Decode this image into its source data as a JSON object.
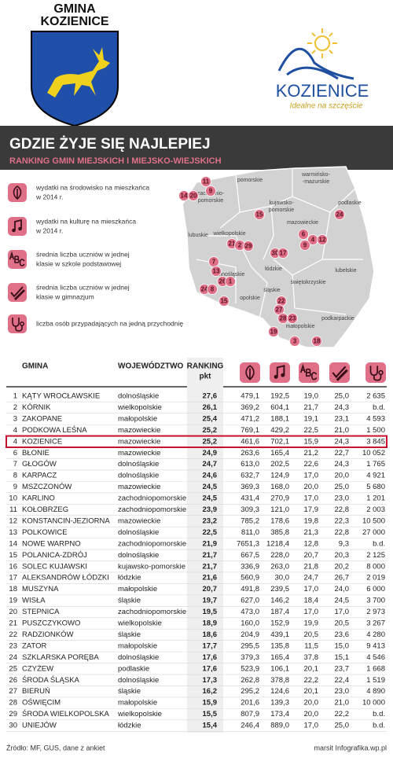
{
  "header": {
    "emblem_text": [
      "GMINA",
      "KOZIENICE"
    ],
    "logo_text": "KOZIENICE",
    "logo_tagline": "Idealne na szczęście"
  },
  "banner": {
    "title": "GDZIE ŻYJE SIĘ NAJLEPIEJ",
    "subtitle": "RANKING GMIN MIEJSKICH I MIEJSKO-WIEJSKICH"
  },
  "legend": [
    [
      "wydatki na środowisko na mieszkańca",
      "w 2014 r."
    ],
    [
      "wydatki na kulturę na mieszkańca",
      "w 2014 r."
    ],
    [
      "średnia liczba uczniów w jednej",
      "klasie w szkole podstawowej"
    ],
    [
      "średnia liczba uczniów w jednej",
      "klasie w gimnazjum"
    ],
    [
      "liczba osób przypadających na jedną przychodnię"
    ]
  ],
  "map": {
    "regions": [
      [
        "pomorskie"
      ],
      [
        "warmińsko-",
        "-mazurskie"
      ],
      [
        "zachodnio-",
        "pomorskie"
      ],
      [
        "kujawsko-",
        "pomorskie"
      ],
      [
        "podlaskie"
      ],
      [
        "mazowieckie"
      ],
      [
        "wielkopolskie"
      ],
      [
        "lubuskie"
      ],
      [
        "łódzkie"
      ],
      [
        "lubelskie"
      ],
      [
        "dolnośląskie"
      ],
      [
        "świętokrzyskie"
      ],
      [
        "opolskie"
      ],
      [
        "śląskie"
      ],
      [
        "podkarpackie"
      ],
      [
        "małopolskie"
      ]
    ],
    "pins": [
      "11",
      "9",
      "14",
      "20",
      "15",
      "24",
      "6",
      "4",
      "12",
      "9",
      "21",
      "2",
      "29",
      "30",
      "17",
      "7",
      "13",
      "26",
      "1",
      "24",
      "8",
      "15",
      "22",
      "27",
      "28",
      "23",
      "19",
      "3",
      "18"
    ]
  },
  "table": {
    "columns": [
      "GMINA",
      "WOJEWÓDZTWO",
      [
        "RANKING",
        "pkt"
      ]
    ],
    "rows": [
      [
        "1",
        "KĄTY WROCŁAWSKIE",
        "dolnośląskie",
        "27,6",
        "479,1",
        "192,5",
        "19,0",
        "25,0",
        "2 635"
      ],
      [
        "2",
        "KÓRNIK",
        "wielkopolskie",
        "26,1",
        "369,2",
        "604,1",
        "21,7",
        "24,3",
        "b.d."
      ],
      [
        "3",
        "ZAKOPANE",
        "małopolskie",
        "25,4",
        "471,2",
        "188,1",
        "19,1",
        "23,1",
        "4 593"
      ],
      [
        "4",
        "PODKOWA LEŚNA",
        "mazowieckie",
        "25,2",
        "769,1",
        "429,2",
        "22,5",
        "21,0",
        "1 500"
      ],
      [
        "4",
        "KOZIENICE",
        "mazowieckie",
        "25,2",
        "461,6",
        "702,1",
        "15,9",
        "24,3",
        "3 845"
      ],
      [
        "6",
        "BŁONIE",
        "mazowieckie",
        "24,9",
        "263,6",
        "165,4",
        "21,2",
        "22,7",
        "10 052"
      ],
      [
        "7",
        "GŁOGÓW",
        "dolnośląskie",
        "24,7",
        "613,0",
        "202,5",
        "22,6",
        "24,3",
        "1 765"
      ],
      [
        "8",
        "KARPACZ",
        "dolnośląskie",
        "24,6",
        "632,7",
        "124,9",
        "17,0",
        "20,0",
        "4 921"
      ],
      [
        "9",
        "MSZCZONÓW",
        "mazowieckie",
        "24,5",
        "369,3",
        "168,0",
        "20,0",
        "25,0",
        "5 680"
      ],
      [
        "10",
        "KARLINO",
        "zachodniopomorskie",
        "24,5",
        "431,4",
        "270,9",
        "17,0",
        "23,0",
        "1 201"
      ],
      [
        "11",
        "KOŁOBRZEG",
        "zachodniopomorskie",
        "23,9",
        "309,3",
        "121,0",
        "17,9",
        "22,8",
        "2 003"
      ],
      [
        "12",
        "KONSTANCIN-JEZIORNA",
        "mazowieckie",
        "23,2",
        "785,2",
        "178,6",
        "19,8",
        "22,3",
        "10 500"
      ],
      [
        "13",
        "POLKOWICE",
        "dolnośląskie",
        "22,5",
        "811,0",
        "385,8",
        "21,3",
        "22,8",
        "27 000"
      ],
      [
        "14",
        "NOWE WARPNO",
        "zachodniopomorskie",
        "21,9",
        "7651,3",
        "1218,4",
        "12,8",
        "9,3",
        "b.d."
      ],
      [
        "15",
        "POLANICA-ZDRÓJ",
        "dolnośląskie",
        "21,7",
        "667,5",
        "228,0",
        "20,7",
        "20,3",
        "2 125"
      ],
      [
        "16",
        "SOLEC KUJAWSKI",
        "kujawsko-pomorskie",
        "21,7",
        "336,9",
        "263,0",
        "21,8",
        "20,2",
        "8 000"
      ],
      [
        "17",
        "ALEKSANDRÓW ŁÓDZKI",
        "łódzkie",
        "21,6",
        "560,9",
        "30,0",
        "24,7",
        "26,7",
        "2 019"
      ],
      [
        "18",
        "MUSZYNA",
        "małopolskie",
        "20,7",
        "491,8",
        "239,5",
        "17,0",
        "24,0",
        "6 000"
      ],
      [
        "19",
        "WISŁA",
        "śląskie",
        "19,7",
        "627,0",
        "146,2",
        "18,4",
        "24,5",
        "3 700"
      ],
      [
        "20",
        "STEPNICA",
        "zachodniopomorskie",
        "19,5",
        "473,0",
        "187,4",
        "17,0",
        "17,0",
        "2 973"
      ],
      [
        "21",
        "PUSZCZYKOWO",
        "wielkopolskie",
        "18,9",
        "160,0",
        "152,9",
        "19,9",
        "20,5",
        "3 267"
      ],
      [
        "22",
        "RADZIONKÓW",
        "śląskie",
        "18,6",
        "204,9",
        "439,1",
        "20,5",
        "23,6",
        "4 280"
      ],
      [
        "23",
        "ZATOR",
        "małopolskie",
        "17,7",
        "295,5",
        "135,8",
        "11,5",
        "15,0",
        "9 413"
      ],
      [
        "24",
        "SZKLARSKA PORĘBA",
        "dolnośląskie",
        "17,6",
        "379,3",
        "165,4",
        "37,8",
        "15,1",
        "4 546"
      ],
      [
        "25",
        "CZYŻEW",
        "podlaskie",
        "17,6",
        "523,9",
        "106,1",
        "20,1",
        "23,7",
        "1 668"
      ],
      [
        "26",
        "ŚRODA ŚLĄSKA",
        "dolnośląskie",
        "17,3",
        "262,8",
        "378,8",
        "22,2",
        "22,4",
        "1 519"
      ],
      [
        "27",
        "BIERUŃ",
        "śląskie",
        "16,2",
        "295,2",
        "124,6",
        "20,1",
        "23,0",
        "4 890"
      ],
      [
        "28",
        "OŚWIĘCIM",
        "małopolskie",
        "15,9",
        "201,6",
        "139,3",
        "20,0",
        "21,0",
        "10 000"
      ],
      [
        "29",
        "ŚRODA WIELKOPOLSKA",
        "wielkopolskie",
        "15,5",
        "807,9",
        "173,4",
        "20,0",
        "22,2",
        "b.d."
      ],
      [
        "30",
        "UNIEJÓW",
        "łódzkie",
        "15,4",
        "246,4",
        "889,0",
        "17,0",
        "25,0",
        "b.d."
      ]
    ]
  },
  "footer": {
    "source": "Źródło: MF, GUS, dane z ankiet",
    "credit": "marsit Infografika.wp.pl"
  }
}
